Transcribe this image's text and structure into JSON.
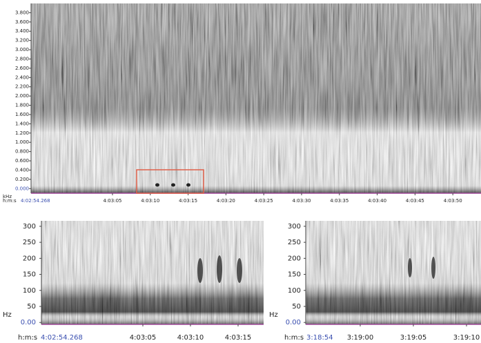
{
  "chart_data": [
    {
      "type": "spectrogram",
      "ylabel": "kHz",
      "ylim": [
        -0.1,
        4.0
      ],
      "yticks": [
        {
          "value": 0,
          "label": "0.000"
        },
        {
          "value": 0.2,
          "label": "0.200"
        },
        {
          "value": 0.4,
          "label": "0.400"
        },
        {
          "value": 0.6,
          "label": "0.600"
        },
        {
          "value": 0.8,
          "label": "0.800"
        },
        {
          "value": 1,
          "label": "1.000"
        },
        {
          "value": 1.2,
          "label": "1.200"
        },
        {
          "value": 1.4,
          "label": "1.400"
        },
        {
          "value": 1.6,
          "label": "1.600"
        },
        {
          "value": 1.8,
          "label": "1.800"
        },
        {
          "value": 2,
          "label": "2.000"
        },
        {
          "value": 2.2,
          "label": "2.200"
        },
        {
          "value": 2.4,
          "label": "2.400"
        },
        {
          "value": 2.6,
          "label": "2.600"
        },
        {
          "value": 2.8,
          "label": "2.800"
        },
        {
          "value": 3,
          "label": "3.000"
        },
        {
          "value": 3.2,
          "label": "3.200"
        },
        {
          "value": 3.4,
          "label": "3.400"
        },
        {
          "value": 3.6,
          "label": "3.600"
        },
        {
          "value": 3.8,
          "label": "3.800"
        }
      ],
      "x_origin_prefix": "h:m:s",
      "x_origin": "4:02:54.268",
      "x_labels": [
        "4:03:05",
        "4:03:10",
        "4:03:15",
        "4:03:20",
        "4:03:25",
        "4:03:30",
        "4:03:35",
        "4:03:40",
        "4:03:45",
        "4:03:50"
      ]
    },
    {
      "type": "spectrogram",
      "ylabel": "Hz",
      "ylim": [
        -6,
        317
      ],
      "yticks": [
        {
          "value": 0,
          "label": "0.00"
        },
        50,
        100,
        150,
        200,
        250,
        300
      ],
      "x_origin_prefix": "h:m:s",
      "x_origin": "4:02:54.268",
      "x_labels": [
        "4:03:05",
        "4:03:10",
        "4:03:15"
      ]
    },
    {
      "type": "spectrogram",
      "ylabel": "Hz",
      "ylim": [
        -6,
        317
      ],
      "yticks": [
        {
          "value": 0,
          "label": "0.00"
        },
        50,
        100,
        150,
        200,
        250,
        300
      ],
      "x_origin_prefix": "h:m:s",
      "x_origin": "3:18:54",
      "x_labels": [
        "3:19:00",
        "3:19:05",
        "3:19:10"
      ]
    }
  ]
}
